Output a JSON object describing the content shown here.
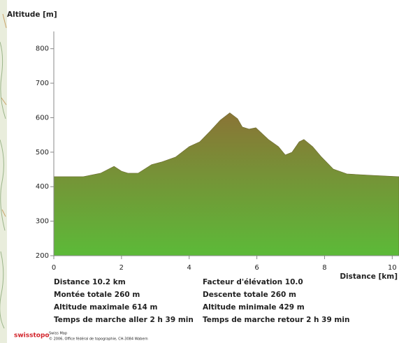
{
  "chart_data": {
    "type": "area",
    "y_label": "Altitude [m]",
    "x_label": "Distance [km]",
    "x": [
      0,
      0.87,
      1.38,
      1.78,
      2.0,
      2.19,
      2.49,
      2.89,
      3.2,
      3.6,
      4.0,
      4.31,
      4.62,
      4.92,
      5.2,
      5.43,
      5.57,
      5.77,
      5.97,
      6.34,
      6.64,
      6.84,
      7.04,
      7.25,
      7.39,
      7.65,
      7.91,
      8.26,
      8.66,
      9.37,
      10.2
    ],
    "values": [
      429,
      429,
      439,
      459,
      445,
      439,
      439,
      464,
      472,
      486,
      516,
      530,
      561,
      593,
      614,
      597,
      573,
      567,
      571,
      537,
      516,
      492,
      500,
      530,
      537,
      516,
      486,
      451,
      437,
      433,
      429
    ],
    "xlim": [
      0,
      10.2
    ],
    "xticks": [
      0,
      2,
      4,
      6,
      8,
      10
    ],
    "ylim": [
      200,
      850
    ],
    "yticks": [
      200,
      300,
      400,
      500,
      600,
      700,
      800
    ],
    "colors": [
      "#8a7436",
      "#5cba38"
    ]
  },
  "summary": [
    "Distance 10.2 km",
    "Facteur d'élévation 10.0",
    "Montée totale  260 m",
    "Descente totale  260 m",
    "Altitude maximale  614 m",
    "Altitude minimale  429 m",
    "Temps de marche aller  2 h 39 min",
    "Temps de marche retour  2 h 39 min"
  ],
  "footer": {
    "brand": "swisstopo",
    "product": "Swiss Map",
    "copyright": "© 2006, Office fédéral de topographie, CH-3084 Wabern"
  }
}
